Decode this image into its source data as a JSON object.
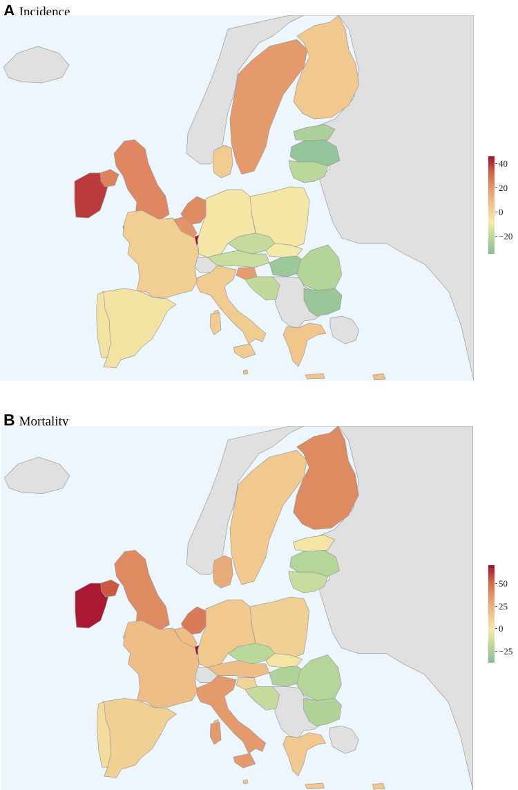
{
  "colors": {
    "sea": "#eef6fd",
    "land_nodata": "#e0e0e0",
    "border": "#9a9a9a",
    "scale": [
      "#85bd98",
      "#b8d79a",
      "#f4e9a8",
      "#f0c48a",
      "#e59a6c",
      "#d06449",
      "#a50f2e"
    ]
  },
  "panels": [
    {
      "letter": "A",
      "title": "Incidence",
      "legend": {
        "ticks": [
          "40",
          "20",
          "0",
          "−20"
        ],
        "min": -35,
        "max": 46,
        "values": [
          40,
          20,
          0,
          -20
        ]
      },
      "countries": {
        "ireland": 40,
        "northern-ireland": 28,
        "uk": 27,
        "iceland": null,
        "norway": null,
        "sweden": 23,
        "finland": 10,
        "estonia": -22,
        "latvia": -30,
        "lithuania": -17,
        "denmark": 9,
        "netherlands": 26,
        "belgium": 24,
        "luxembourg": 46,
        "france": 8,
        "spain": 2,
        "portugal": 2,
        "germany": 1,
        "poland": 1,
        "czechia": -14,
        "austria": -12,
        "switzerland": null,
        "italy": 9,
        "slovenia": 22,
        "croatia": -15,
        "hungary": -27,
        "slovakia": 0,
        "romania": -19,
        "bulgaria": -28,
        "greece": 11,
        "cyprus": 12,
        "malta": 12
      }
    },
    {
      "letter": "B",
      "title": "Mortality",
      "legend": {
        "ticks": [
          "50",
          "25",
          "0",
          "−25"
        ],
        "min": -38,
        "max": 70,
        "values": [
          50,
          25,
          0,
          -25
        ]
      },
      "countries": {
        "ireland": 68,
        "northern-ireland": 55,
        "uk": 40,
        "iceland": null,
        "norway": null,
        "sweden": 15,
        "finland": 40,
        "estonia": 2,
        "latvia": -20,
        "lithuania": -14,
        "denmark": 28,
        "netherlands": 45,
        "belgium": 20,
        "luxembourg": 70,
        "france": 20,
        "spain": 12,
        "portugal": 6,
        "germany": 15,
        "poland": 12,
        "czechia": -18,
        "austria": 20,
        "switzerland": null,
        "italy": 35,
        "slovenia": 10,
        "croatia": -15,
        "hungary": -22,
        "slovakia": 2,
        "romania": -20,
        "bulgaria": -22,
        "greece": 15,
        "cyprus": 15,
        "malta": 15
      }
    }
  ]
}
